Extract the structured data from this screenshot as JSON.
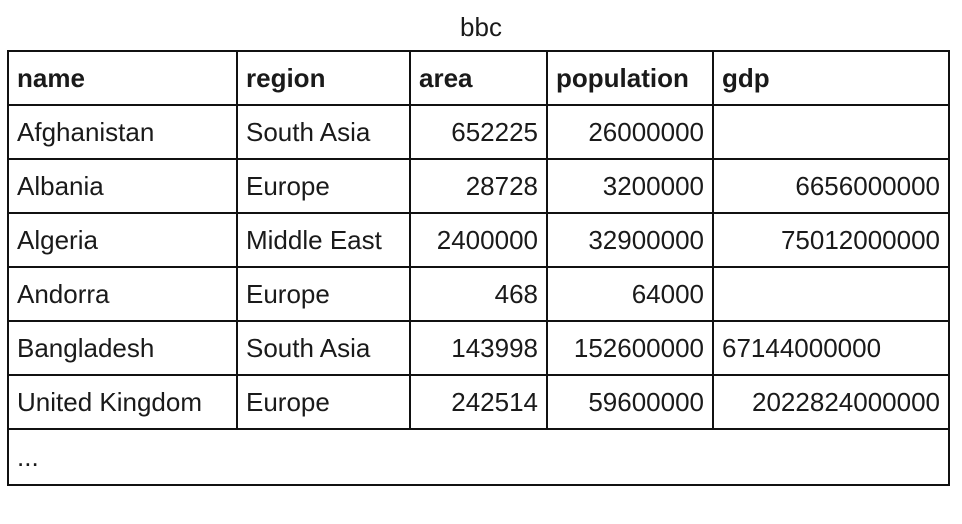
{
  "caption": "bbc",
  "table": {
    "columns": [
      "name",
      "region",
      "area",
      "population",
      "gdp"
    ],
    "rows": [
      [
        "Afghanistan",
        "South Asia",
        "652225",
        "26000000",
        ""
      ],
      [
        "Albania",
        "Europe",
        "28728",
        "3200000",
        "6656000000"
      ],
      [
        "Algeria",
        "Middle East",
        "2400000",
        "32900000",
        "75012000000"
      ],
      [
        "Andorra",
        "Europe",
        "468",
        "64000",
        ""
      ],
      [
        "Bangladesh",
        "South Asia",
        "143998",
        "152600000",
        "67144000000"
      ],
      [
        "United Kingdom",
        "Europe",
        "242514",
        "59600000",
        "2022824000000"
      ]
    ],
    "ellipsis": "..."
  }
}
